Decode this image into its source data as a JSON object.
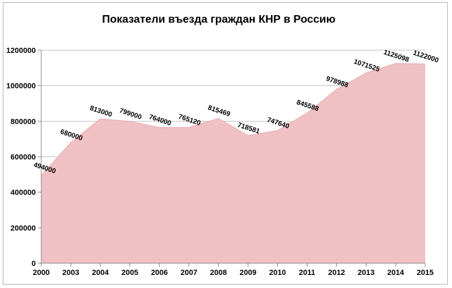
{
  "chart_data": {
    "type": "area",
    "title": "Показатели въезда граждан КНР в Россию",
    "xlabel": "",
    "ylabel": "",
    "categories": [
      "2000",
      "2003",
      "2004",
      "2005",
      "2006",
      "2007",
      "2008",
      "2009",
      "2010",
      "2011",
      "2012",
      "2013",
      "2014",
      "2015"
    ],
    "values": [
      494000,
      680000,
      813000,
      799000,
      764000,
      765120,
      815469,
      718581,
      747640,
      845588,
      978988,
      1071525,
      1125098,
      1122000
    ],
    "data_labels": [
      "494000",
      "680000",
      "813000",
      "799000",
      "764000",
      "765120",
      "815469",
      "718581",
      "747640",
      "845588",
      "978988",
      "1071525",
      "1125098",
      "1122000"
    ],
    "yticks": [
      "0",
      "200000",
      "400000",
      "600000",
      "800000",
      "1000000",
      "1200000"
    ],
    "ylim": [
      0,
      1200000
    ],
    "grid": true,
    "legend": "none",
    "colors": {
      "fill": "#f0c1c4",
      "line": "#eaaeb3",
      "grid": "#c6c6c6",
      "axis": "#8c8c8c"
    }
  }
}
